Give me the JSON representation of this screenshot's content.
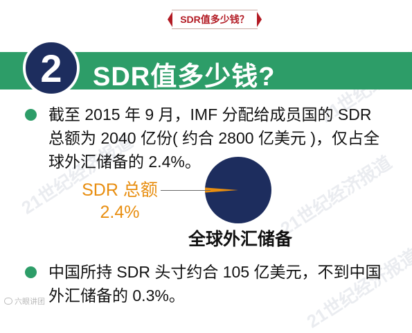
{
  "top_title": "SDR值多少钱？",
  "banner": {
    "number": "2",
    "title": "SDR值多少钱?"
  },
  "paragraph1": [
    "截至 2015 年 9 月，IMF 分配给成员国的 SDR",
    "总额为 2040 亿份( 约合 2800 亿美元 )，仅占全",
    "球外汇储备的 2.4%。"
  ],
  "chart_data": {
    "type": "pie",
    "slices": [
      {
        "label": "SDR 总额",
        "value": 2.4
      },
      {
        "label": "全球外汇储备",
        "value": 97.6
      }
    ],
    "sdr_label_line1": "SDR 总额",
    "sdr_label_line2": "2.4%",
    "caption": "全球外汇储备",
    "colors": {
      "main": "#1d2d5e",
      "sdr": "#e88e10"
    }
  },
  "paragraph2": [
    "中国所持 SDR 头寸约合 105 亿美元，不到中国",
    "外汇储备的 0.3%。"
  ],
  "watermark": "21世纪经济报道",
  "footer_mark": "六眼讲团",
  "colors": {
    "green": "#2d9d68",
    "navy": "#1d2d5e",
    "red": "#b21a23",
    "orange": "#e88e10"
  }
}
